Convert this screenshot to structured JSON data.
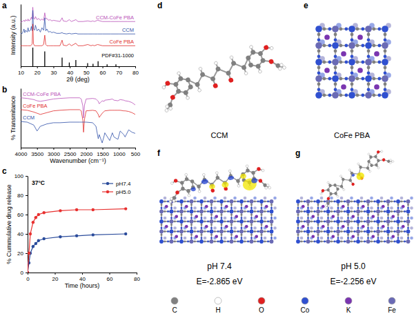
{
  "chart_data": [
    {
      "type": "line",
      "x_label": "2θ (deg)",
      "y_label": "Intensity (a.u.)",
      "x": [
        10,
        11,
        12,
        12.5,
        13,
        14,
        14.5,
        15,
        16,
        16.5,
        17,
        17.4,
        17.8,
        18.5,
        19,
        20,
        21,
        22,
        23,
        24,
        24.7,
        25.3,
        26,
        27,
        28,
        29,
        30,
        32,
        34,
        35.3,
        36,
        38,
        39.7,
        41,
        43.7,
        45,
        48,
        51,
        53,
        54,
        55,
        57,
        60,
        65,
        70,
        75,
        80
      ],
      "series": [
        {
          "name": "CCM-CoFe PBA",
          "color": "#b94fb8",
          "values": [
            71,
            72,
            74,
            72,
            75,
            73,
            76,
            73,
            75,
            79,
            76,
            95,
            77,
            76,
            80,
            75,
            77,
            74,
            76,
            74,
            86,
            76,
            77,
            74,
            75,
            73,
            74,
            73,
            72,
            78,
            73,
            72,
            75,
            72,
            75,
            72,
            72,
            73,
            72,
            73,
            72,
            74,
            72,
            72,
            72,
            72,
            72
          ]
        },
        {
          "name": "CCM",
          "color": "#2f4fa8",
          "values": [
            52,
            53,
            60,
            54,
            58,
            55,
            62,
            56,
            58,
            64,
            57,
            90,
            60,
            58,
            66,
            57,
            60,
            55,
            62,
            58,
            78,
            57,
            60,
            55,
            56,
            54,
            55,
            53,
            53,
            54,
            53,
            52,
            53,
            52,
            53,
            52,
            52,
            52,
            52,
            52,
            52,
            52,
            52,
            52,
            52,
            52,
            52
          ]
        },
        {
          "name": "CoFe PBA",
          "color": "#e02a2a",
          "values": [
            33,
            33,
            33,
            33,
            33,
            33,
            33,
            33,
            33,
            34,
            36,
            68,
            36,
            33,
            33,
            33,
            33,
            33,
            33,
            35,
            50,
            35,
            33,
            33,
            33,
            33,
            33,
            33,
            33,
            42,
            34,
            33,
            36,
            33,
            37,
            33,
            33,
            35,
            33,
            34,
            33,
            35,
            33,
            33,
            33,
            33,
            33
          ]
        },
        {
          "name": "PDF#31-1000",
          "color": "#000000",
          "type": "bar",
          "x": [
            17.4,
            24.7,
            35.3,
            39.7,
            43.7,
            50.9,
            54.2,
            57.3,
            62.8,
            68.2
          ],
          "values": [
            30,
            24,
            14,
            6,
            10,
            5,
            4,
            8,
            3,
            3
          ]
        }
      ],
      "xlim": [
        10,
        80
      ],
      "xticks": [
        10,
        20,
        30,
        40,
        50,
        60,
        70,
        80
      ],
      "ylim": [
        0,
        100
      ],
      "tick_labels": "x"
    },
    {
      "type": "line",
      "x_label": "Wavenumber (cm⁻¹)",
      "y_label": "% Transmitance",
      "x": [
        4000,
        3800,
        3600,
        3500,
        3400,
        3200,
        3000,
        2800,
        2500,
        2200,
        2150,
        2100,
        2080,
        2050,
        2000,
        1800,
        1700,
        1630,
        1600,
        1510,
        1450,
        1430,
        1280,
        1200,
        1150,
        1030,
        960,
        850,
        810,
        700,
        600,
        500
      ],
      "series": [
        {
          "name": "CCM-CoFe PBA",
          "color": "#b94fb8",
          "values": [
            84,
            83,
            81,
            79,
            78,
            80,
            82,
            83,
            84,
            84,
            82,
            70,
            50,
            72,
            82,
            83,
            82,
            78,
            74,
            79,
            78,
            80,
            81,
            82,
            80,
            79,
            81,
            80,
            79,
            78,
            76,
            72
          ]
        },
        {
          "name": "CoFe PBA",
          "color": "#e02a2a",
          "values": [
            64,
            63,
            60,
            58,
            56,
            59,
            62,
            63,
            64,
            64,
            62,
            46,
            26,
            48,
            62,
            63,
            62,
            56,
            51,
            58,
            61,
            62,
            63,
            63,
            63,
            63,
            63,
            62,
            62,
            61,
            59,
            56
          ]
        },
        {
          "name": "CCM",
          "color": "#2f4fa8",
          "values": [
            44,
            43,
            38,
            28,
            36,
            40,
            42,
            42,
            43,
            43,
            43,
            43,
            43,
            43,
            43,
            42,
            36,
            15,
            22,
            8,
            20,
            25,
            12,
            25,
            18,
            14,
            28,
            22,
            18,
            30,
            26,
            24
          ]
        }
      ],
      "xlim": [
        4000,
        500
      ],
      "xticks": [
        4000,
        3500,
        3000,
        2500,
        2000,
        1500,
        1000,
        500
      ],
      "ylim": [
        0,
        100
      ],
      "tick_labels": "x"
    },
    {
      "type": "line",
      "x_label": "Time (hours)",
      "y_label": "% Cummulative drug release",
      "annotation": "37°C",
      "x": [
        0,
        1,
        2,
        4,
        6,
        8,
        12,
        24,
        36,
        48,
        72
      ],
      "series": [
        {
          "name": "pH7.4",
          "color": "#2a4b9b",
          "values": [
            0,
            10,
            20,
            27,
            30,
            33,
            35,
            37,
            38,
            39,
            40
          ]
        },
        {
          "name": "pH5.0",
          "color": "#e8302f",
          "values": [
            0,
            20,
            40,
            52,
            57,
            60,
            62,
            64,
            65,
            65,
            66
          ]
        }
      ],
      "marker": "circle",
      "legend": "top-right",
      "xlim": [
        0,
        80
      ],
      "xticks": [
        0,
        20,
        40,
        60,
        80
      ],
      "ylim": [
        0,
        100
      ],
      "yticks": [
        0,
        20,
        40,
        60,
        80,
        100
      ]
    }
  ],
  "panel_labels": [
    "a",
    "b",
    "c",
    "d",
    "e",
    "f",
    "g"
  ],
  "structures": [
    {
      "label": "CCM"
    },
    {
      "label": "CoFe PBA"
    },
    {
      "ph": "pH 7.4",
      "energy": "E=-2.865 eV"
    },
    {
      "ph": "pH 5.0",
      "energy": "E=-2.256 eV"
    }
  ],
  "atom_legend": [
    {
      "label": "C",
      "color": "#808080"
    },
    {
      "label": "H",
      "color": "#ffffff"
    },
    {
      "label": "O",
      "color": "#e02020"
    },
    {
      "label": "Co",
      "color": "#3050d0"
    },
    {
      "label": "K",
      "color": "#7a35b0"
    },
    {
      "label": "Fe",
      "color": "#6a6ab5"
    }
  ]
}
